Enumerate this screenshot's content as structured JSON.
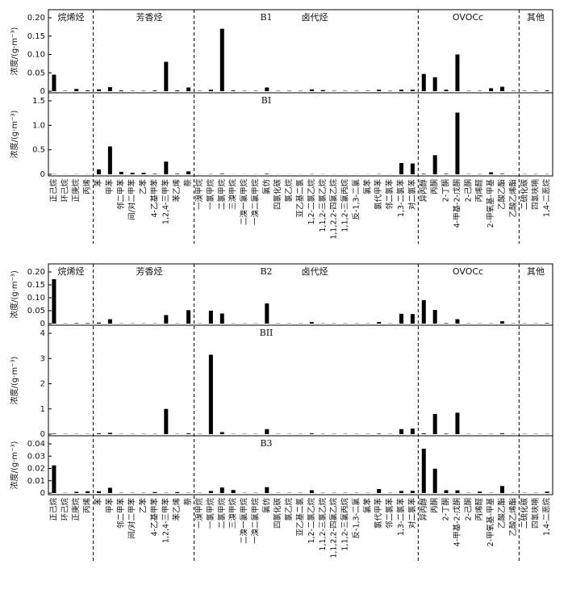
{
  "chart_data": [
    {
      "type": "bar",
      "color": "#000000",
      "ylabel": "浓度/(g·m⁻³)",
      "groups": [
        "烷烯烃",
        "芳香烃",
        "卤代烃",
        "OVOCc",
        "其他"
      ],
      "categories": [
        "正己烷",
        "环己烷",
        "正庚烷",
        "丙烯",
        "苯",
        "甲苯",
        "邻二甲苯",
        "间/对二甲苯",
        "乙苯",
        "4-乙基甲苯",
        "1,2,4-三甲苯",
        "苯乙烯",
        "萘",
        "一溴甲烷",
        "一氯甲烷",
        "二氯甲烷",
        "三溴甲烷",
        "二溴一氯甲烷",
        "一溴二氯甲烷",
        "氯仿",
        "四氯化碳",
        "氯乙烷",
        "亚乙基二氯",
        "1,2-二氯乙烷",
        "1,1,2-三氯乙烷",
        "1,1,2,2-四氯乙烷",
        "1,1,2-三氯丙烷",
        "反-1,3-二氯",
        "氯苯",
        "氯代甲苯",
        "邻二氯苯",
        "1,3-二氯苯",
        "对二氯苯",
        "异丙醇",
        "丙酮",
        "2-丁酮",
        "4-甲基-2-戊酮",
        "2-己酮",
        "丙烯醛",
        "2-甲氧基-甲基",
        "乙酸乙酯",
        "乙酸乙烯酯",
        "二硫化碳",
        "四氢呋喃",
        "1,4-二恶烷"
      ],
      "panels": [
        {
          "title": "B1",
          "ylim": [
            0,
            0.2
          ],
          "yticks": [
            0,
            0.05,
            {
              "value": 0.1,
              "label": "0.10"
            },
            0.15,
            {
              "value": 0.2,
              "label": "0.20"
            }
          ],
          "values": [
            0.045,
            0.001,
            0.006,
            0.002,
            0.005,
            0.011,
            0.002,
            0.001,
            0.001,
            0.002,
            0.08,
            0.002,
            0.01,
            0.001,
            0.004,
            0.17,
            0.002,
            0.001,
            0.001,
            0.01,
            0.001,
            0.001,
            0.001,
            0.005,
            0.003,
            0.001,
            0.001,
            0.001,
            0.001,
            0.004,
            0.001,
            0.004,
            0.004,
            0.047,
            0.038,
            0.004,
            0.1,
            0.001,
            0.001,
            0.008,
            0.012,
            0.001,
            0.001,
            0.001,
            0.002
          ]
        },
        {
          "title": "BI",
          "ylim": [
            0,
            1.5
          ],
          "yticks": [
            0,
            0.5,
            {
              "value": 1,
              "label": "1.0"
            },
            1.5
          ],
          "values": [
            0.005,
            0.002,
            0.003,
            0.002,
            0.1,
            0.57,
            0.05,
            0.03,
            0.03,
            0.01,
            0.26,
            0.01,
            0.06,
            0.002,
            0.005,
            0.01,
            0.002,
            0.002,
            0.002,
            0.01,
            0.002,
            0.002,
            0.002,
            0.005,
            0.003,
            0.002,
            0.002,
            0.002,
            0.002,
            0.005,
            0.002,
            0.23,
            0.22,
            0.01,
            0.39,
            0.01,
            1.26,
            0.005,
            0.005,
            0.04,
            0.01,
            0.002,
            0.005,
            0.005,
            0.005
          ]
        }
      ]
    },
    {
      "type": "bar",
      "color": "#000000",
      "ylabel": "浓度/(g·m⁻³)",
      "groups": [
        "烷烯烃",
        "芳香烃",
        "卤代烃",
        "OVOCc",
        "其他"
      ],
      "categories": [
        "正己烷",
        "环己烷",
        "正庚烷",
        "丙烯",
        "苯",
        "甲苯",
        "邻二甲苯",
        "间/对二甲苯",
        "乙苯",
        "4-乙基甲苯",
        "1,2,4-三甲苯",
        "苯乙烯",
        "萘",
        "一溴甲烷",
        "一氯甲烷",
        "二氯甲烷",
        "三溴甲烷",
        "二溴一氯甲烷",
        "一溴二氯甲烷",
        "氯仿",
        "四氯化碳",
        "氯乙烷",
        "亚乙基二氯",
        "1,2-二氯乙烷",
        "1,1,2-三氯乙烷",
        "1,1,2,2-四氯乙烷",
        "1,1,2-三氯丙烷",
        "反-1,3-二氯",
        "氯苯",
        "氯代甲苯",
        "邻二氯苯",
        "1,3-二氯苯",
        "对二氯苯",
        "异丙醇",
        "丙酮",
        "2-丁酮",
        "4-甲基-2-戊酮",
        "2-己酮",
        "丙烯醛",
        "2-甲氧基-甲基",
        "乙酸乙酯",
        "乙酸乙烯酯",
        "二硫化碳",
        "四氢呋喃",
        "1,4-二恶烷"
      ],
      "panels": [
        {
          "title": "B2",
          "ylim": [
            0,
            0.2
          ],
          "yticks": [
            0,
            0.05,
            {
              "value": 0.1,
              "label": "0.10"
            },
            0.15,
            {
              "value": 0.2,
              "label": "0.20"
            }
          ],
          "values": [
            0.172,
            0.001,
            0.002,
            0.002,
            0.004,
            0.017,
            0.001,
            0.001,
            0.001,
            0.001,
            0.033,
            0.001,
            0.052,
            0.001,
            0.05,
            0.039,
            0.001,
            0.001,
            0.001,
            0.078,
            0.001,
            0.001,
            0.001,
            0.006,
            0.001,
            0.001,
            0.001,
            0.001,
            0.001,
            0.006,
            0.001,
            0.038,
            0.037,
            0.091,
            0.053,
            0.002,
            0.017,
            0.001,
            0.001,
            0.001,
            0.009,
            0.001,
            0.001,
            0.001,
            0.002
          ]
        },
        {
          "title": "BII",
          "ylim": [
            0,
            4
          ],
          "yticks": [
            0,
            1,
            2,
            3,
            4
          ],
          "values": [
            0.02,
            0.01,
            0.01,
            0.01,
            0.03,
            0.05,
            0.01,
            0.01,
            0.01,
            0.01,
            1.0,
            0.01,
            0.03,
            0.01,
            3.15,
            0.08,
            0.01,
            0.01,
            0.01,
            0.2,
            0.01,
            0.01,
            0.01,
            0.03,
            0.01,
            0.01,
            0.01,
            0.01,
            0.01,
            0.02,
            0.01,
            0.2,
            0.22,
            0.03,
            0.8,
            0.02,
            0.85,
            0.01,
            0.01,
            0.01,
            0.03,
            0.01,
            0.01,
            0.01,
            0.01
          ]
        },
        {
          "title": "B3",
          "ylim": [
            0,
            0.04
          ],
          "yticks": [
            0,
            0.01,
            0.02,
            0.03,
            0.04
          ],
          "values": [
            0.0225,
            0.0002,
            0.001,
            0.0015,
            0.0015,
            0.0043,
            0.0002,
            0.0002,
            0.0002,
            0.0008,
            0.0002,
            0.0008,
            0.0002,
            0.0002,
            0.0017,
            0.0045,
            0.0025,
            0.0002,
            0.0002,
            0.0048,
            0.0002,
            0.0002,
            0.0002,
            0.0023,
            0.0002,
            0.0002,
            0.0002,
            0.0002,
            0.0002,
            0.0033,
            0.0002,
            0.0017,
            0.0018,
            0.036,
            0.0198,
            0.0023,
            0.0022,
            0.0002,
            0.0012,
            0.0002,
            0.0057,
            0.0002,
            0.0002,
            0.0002,
            0.0012
          ]
        }
      ]
    }
  ]
}
